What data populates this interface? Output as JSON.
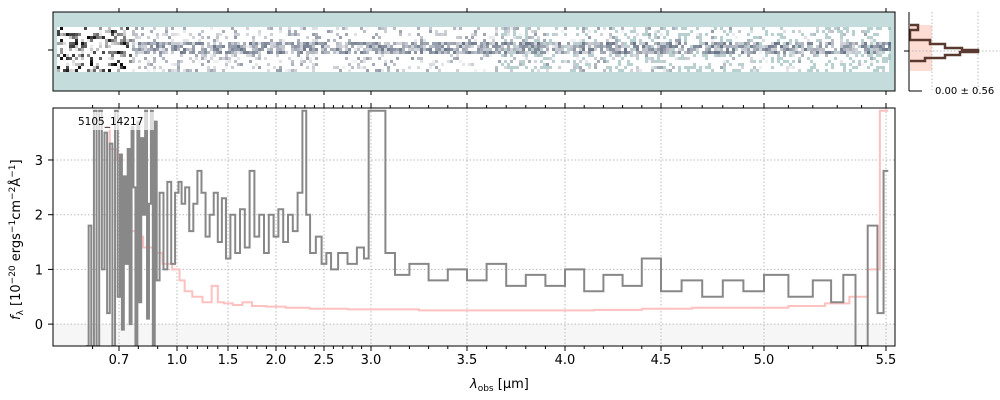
{
  "chart_data": {
    "type": "line",
    "object_label": "5105_14217",
    "xlabel_main": "λ",
    "xlabel_sub": "obs",
    "xlabel_unit": " [μm]",
    "ylabel_parts": [
      "f",
      "λ",
      " [10",
      "−20",
      " ergs",
      "−1",
      "cm",
      "−2",
      "Å",
      "−1",
      "]"
    ],
    "xticks": [
      "0.7",
      "1.0",
      "1.5",
      "2.0",
      "2.5",
      "3.0",
      "3.5",
      "4.0",
      "4.5",
      "5.0",
      "5.5"
    ],
    "xtick_values": [
      0.7,
      1.0,
      1.5,
      2.0,
      2.5,
      3.0,
      3.5,
      4.0,
      4.5,
      5.0,
      5.5
    ],
    "yticks": [
      "0",
      "1",
      "2",
      "3"
    ],
    "ylim": [
      -0.4,
      3.95
    ],
    "grid": true,
    "colors": {
      "flux": "#888888",
      "error": "#ffc0c0",
      "twod_bg": "#c4dcdc",
      "hist": "#5a3a30",
      "hist_fill": "#fdd5c8"
    },
    "hist_label": "0.00 ± 0.56",
    "series": [
      {
        "name": "flux",
        "x": [
          0.58,
          0.59,
          0.6,
          0.61,
          0.62,
          0.63,
          0.64,
          0.65,
          0.66,
          0.67,
          0.68,
          0.69,
          0.7,
          0.71,
          0.72,
          0.73,
          0.74,
          0.75,
          0.76,
          0.77,
          0.78,
          0.79,
          0.8,
          0.81,
          0.82,
          0.83,
          0.84,
          0.85,
          0.86,
          0.87,
          0.88,
          0.89,
          0.9,
          0.92,
          0.94,
          0.96,
          0.98,
          1.0,
          1.03,
          1.06,
          1.1,
          1.14,
          1.18,
          1.22,
          1.26,
          1.3,
          1.34,
          1.38,
          1.42,
          1.46,
          1.5,
          1.55,
          1.6,
          1.65,
          1.7,
          1.75,
          1.8,
          1.85,
          1.9,
          1.95,
          2.0,
          2.05,
          2.1,
          2.15,
          2.2,
          2.25,
          2.3,
          2.33,
          2.38,
          2.45,
          2.5,
          2.55,
          2.6,
          2.7,
          2.8,
          2.9,
          2.95,
          3.0,
          3.05,
          3.1,
          3.15,
          3.25,
          3.35,
          3.45,
          3.55,
          3.65,
          3.75,
          3.85,
          3.95,
          4.05,
          4.15,
          4.25,
          4.35,
          4.45,
          4.55,
          4.65,
          4.75,
          4.85,
          4.95,
          5.05,
          5.15,
          5.25,
          5.3,
          5.35,
          5.4,
          5.45,
          5.48,
          5.5
        ],
        "y": [
          -0.4,
          1.8,
          -0.4,
          3.9,
          -0.4,
          3.9,
          1.0,
          3.5,
          0.2,
          3.3,
          -0.4,
          3.9,
          0.5,
          3.1,
          -0.1,
          2.7,
          1.1,
          3.2,
          0.0,
          3.6,
          2.5,
          -0.4,
          3.7,
          0.4,
          3.4,
          2.0,
          3.9,
          0.1,
          2.2,
          3.9,
          -0.4,
          3.7,
          0.8,
          2.4,
          1.0,
          2.6,
          1.1,
          2.4,
          2.6,
          2.2,
          2.5,
          1.7,
          2.2,
          2.8,
          2.4,
          1.6,
          2.0,
          2.4,
          1.5,
          2.3,
          1.2,
          2.0,
          1.3,
          2.1,
          1.4,
          2.8,
          1.6,
          2.0,
          1.3,
          2.0,
          1.6,
          2.1,
          1.5,
          2.0,
          1.7,
          2.4,
          3.9,
          2.0,
          1.3,
          1.6,
          1.1,
          1.3,
          1.0,
          1.3,
          1.1,
          1.4,
          1.2,
          3.9,
          3.9,
          1.3,
          0.9,
          1.1,
          0.8,
          1.0,
          0.8,
          1.1,
          0.7,
          0.9,
          0.7,
          1.0,
          0.6,
          0.9,
          0.7,
          1.2,
          0.6,
          0.8,
          0.5,
          0.8,
          0.6,
          0.9,
          0.5,
          0.8,
          0.4,
          0.9,
          -0.4,
          1.8,
          0.2,
          2.8
        ]
      },
      {
        "name": "error",
        "x": [
          0.65,
          0.68,
          0.7,
          0.72,
          0.75,
          0.78,
          0.8,
          0.85,
          0.9,
          0.95,
          1.0,
          1.05,
          1.1,
          1.2,
          1.3,
          1.38,
          1.42,
          1.5,
          1.6,
          1.7,
          1.8,
          2.0,
          2.2,
          2.5,
          3.0,
          3.5,
          4.0,
          4.3,
          4.5,
          4.8,
          5.0,
          5.2,
          5.3,
          5.4,
          5.45,
          5.5
        ],
        "y": [
          3.6,
          3.2,
          3.0,
          2.4,
          2.2,
          1.7,
          1.6,
          1.4,
          1.3,
          1.1,
          1.0,
          0.8,
          0.6,
          0.5,
          0.4,
          0.7,
          0.4,
          0.38,
          0.35,
          0.4,
          0.33,
          0.32,
          0.3,
          0.28,
          0.27,
          0.25,
          0.25,
          0.26,
          0.28,
          0.3,
          0.3,
          0.33,
          0.38,
          0.5,
          1.0,
          3.9
        ]
      }
    ]
  }
}
